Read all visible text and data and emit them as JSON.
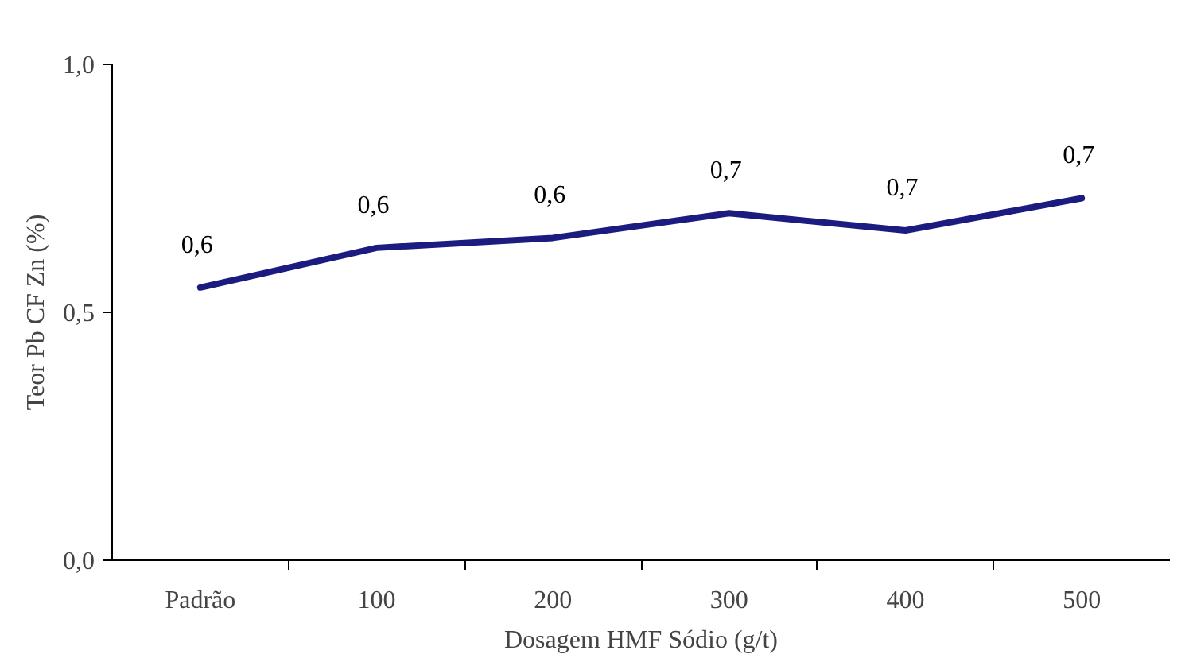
{
  "chart_data": {
    "type": "line",
    "xlabel": "Dosagem HMF Sódio (g/t)",
    "ylabel": "Teor Pb CF Zn (%)",
    "categories": [
      "Padrão",
      "100",
      "200",
      "300",
      "400",
      "500"
    ],
    "series": [
      {
        "color": "#1c1c80",
        "values": [
          0.55,
          0.63,
          0.65,
          0.7,
          0.665,
          0.73
        ],
        "value_labels": [
          "0,6",
          "0,6",
          "0,6",
          "0,7",
          "0,7",
          "0,7"
        ]
      }
    ],
    "ylim": [
      0,
      1
    ],
    "yticks": [
      {
        "value": 0,
        "label": "0,0"
      },
      {
        "value": 0.5,
        "label": "0,5"
      },
      {
        "value": 1,
        "label": "1,0"
      }
    ],
    "marker": "none",
    "line_style": "solid"
  }
}
